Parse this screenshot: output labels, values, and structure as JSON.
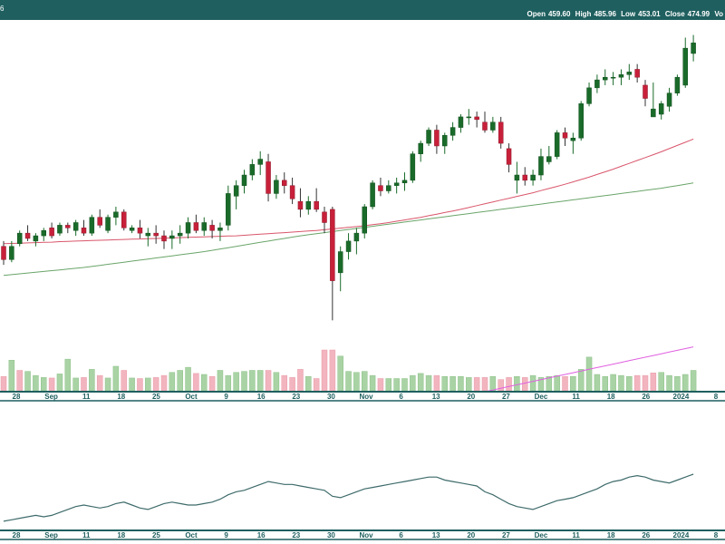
{
  "header": {
    "left_glyph": "6",
    "readout": {
      "open_label": "Open",
      "open_value": "459.60",
      "high_label": "High",
      "high_value": "485.96",
      "low_label": "Low",
      "low_value": "453.01",
      "close_label": "Close",
      "close_value": "474.99",
      "volume_label": "Vo"
    },
    "colors": {
      "bar": "#1f5f5f",
      "text": "#ffffff"
    }
  },
  "x_axis": {
    "tick_labels": [
      "28",
      "Sep",
      "11",
      "18",
      "25",
      "Oct",
      "9",
      "16",
      "23",
      "30",
      "Nov",
      "6",
      "13",
      "20",
      "27",
      "Dec",
      "11",
      "18",
      "26",
      "2024",
      "8"
    ]
  },
  "chart_data": [
    {
      "type": "candlestick",
      "title": "",
      "price_range": [
        380,
        520
      ],
      "ohlc": [
        [
          435,
          437,
          428,
          430
        ],
        [
          430,
          437,
          429,
          435
        ],
        [
          436,
          441,
          435,
          440
        ],
        [
          440,
          443,
          437,
          438
        ],
        [
          437,
          440,
          435,
          439
        ],
        [
          439,
          442,
          437,
          441
        ],
        [
          442,
          444,
          438,
          439
        ],
        [
          440,
          444,
          439,
          443
        ],
        [
          443,
          444,
          440,
          442
        ],
        [
          441,
          445,
          439,
          444
        ],
        [
          442,
          445,
          439,
          440
        ],
        [
          440,
          447,
          439,
          446
        ],
        [
          446,
          449,
          442,
          443
        ],
        [
          441,
          447,
          440,
          446
        ],
        [
          446,
          450,
          443,
          448
        ],
        [
          448,
          449,
          441,
          442
        ],
        [
          441,
          443,
          440,
          442
        ],
        [
          442,
          445,
          438,
          440
        ],
        [
          439,
          442,
          435,
          440
        ],
        [
          440,
          443,
          436,
          439
        ],
        [
          439,
          441,
          434,
          437
        ],
        [
          438,
          441,
          434,
          439
        ],
        [
          439,
          443,
          436,
          440
        ],
        [
          440,
          446,
          438,
          444
        ],
        [
          444,
          447,
          440,
          441
        ],
        [
          441,
          446,
          439,
          444
        ],
        [
          443,
          445,
          438,
          441
        ],
        [
          441,
          444,
          437,
          442
        ],
        [
          443,
          458,
          441,
          455
        ],
        [
          454,
          460,
          449,
          458
        ],
        [
          458,
          464,
          455,
          462
        ],
        [
          462,
          468,
          460,
          466
        ],
        [
          466,
          471,
          462,
          468
        ],
        [
          467,
          470,
          452,
          455
        ],
        [
          455,
          462,
          453,
          460
        ],
        [
          460,
          463,
          455,
          458
        ],
        [
          458,
          461,
          451,
          453
        ],
        [
          452,
          457,
          446,
          449
        ],
        [
          449,
          454,
          447,
          452
        ],
        [
          452,
          457,
          448,
          449
        ],
        [
          448,
          450,
          440,
          444
        ],
        [
          449,
          450,
          407,
          422
        ],
        [
          425,
          435,
          418,
          433
        ],
        [
          433,
          440,
          430,
          437
        ],
        [
          437,
          442,
          432,
          440
        ],
        [
          440,
          451,
          438,
          450
        ],
        [
          450,
          460,
          449,
          459
        ],
        [
          458,
          461,
          454,
          456
        ],
        [
          456,
          460,
          455,
          458
        ],
        [
          458,
          461,
          455,
          459
        ],
        [
          459,
          463,
          456,
          460
        ],
        [
          460,
          471,
          459,
          470
        ],
        [
          470,
          475,
          467,
          474
        ],
        [
          474,
          480,
          473,
          479
        ],
        [
          479,
          481,
          470,
          473
        ],
        [
          473,
          478,
          470,
          477
        ],
        [
          477,
          482,
          475,
          480
        ],
        [
          480,
          485,
          478,
          484
        ],
        [
          484,
          487,
          481,
          484
        ],
        [
          484,
          486,
          480,
          483
        ],
        [
          482,
          486,
          478,
          479
        ],
        [
          479,
          484,
          478,
          482
        ],
        [
          482,
          484,
          472,
          474
        ],
        [
          472,
          474,
          463,
          466
        ],
        [
          460,
          467,
          455,
          462
        ],
        [
          462,
          465,
          458,
          460
        ],
        [
          460,
          464,
          458,
          462
        ],
        [
          462,
          472,
          460,
          469
        ],
        [
          467,
          473,
          466,
          469
        ],
        [
          469,
          479,
          468,
          478
        ],
        [
          478,
          480,
          473,
          476
        ],
        [
          475,
          478,
          470,
          476
        ],
        [
          476,
          490,
          475,
          489
        ],
        [
          489,
          497,
          488,
          495
        ],
        [
          495,
          500,
          493,
          498
        ],
        [
          498,
          502,
          496,
          499
        ],
        [
          499,
          501,
          496,
          499
        ],
        [
          499,
          502,
          496,
          500
        ],
        [
          500,
          504,
          498,
          501
        ],
        [
          502,
          504,
          497,
          499
        ],
        [
          496,
          498,
          488,
          491
        ],
        [
          484,
          497,
          484,
          487
        ],
        [
          485,
          490,
          483,
          489
        ],
        [
          488,
          495,
          486,
          493
        ],
        [
          493,
          500,
          492,
          499
        ],
        [
          496,
          514,
          495,
          510
        ],
        [
          508,
          515,
          505,
          512
        ]
      ],
      "sma_50": [
        436,
        436.1,
        436.2,
        436.3,
        436.4,
        436.5,
        436.6,
        436.8,
        436.9,
        437,
        437.1,
        437.2,
        437.3,
        437.4,
        437.5,
        437.6,
        437.7,
        437.8,
        437.9,
        438,
        438.1,
        438.2,
        438.3,
        438.4,
        438.5,
        438.6,
        438.7,
        438.8,
        438.9,
        439,
        439.2,
        439.4,
        439.6,
        439.8,
        440,
        440.2,
        440.4,
        440.6,
        440.8,
        441,
        441.3,
        441.6,
        441.9,
        442.2,
        442.5,
        442.8,
        443.2,
        443.6,
        444,
        444.5,
        445,
        445.5,
        446,
        446.6,
        447.2,
        447.8,
        448.4,
        449,
        449.7,
        450.4,
        451.1,
        451.8,
        452.5,
        453.2,
        453.9,
        454.6,
        455.3,
        456.1,
        456.9,
        457.7,
        458.5,
        459.4,
        460.3,
        461.2,
        462.2,
        463.2,
        464.2,
        465.3,
        466.4,
        467.5,
        468.6,
        469.7,
        470.8,
        472,
        473.2,
        474.4,
        475.6
      ],
      "sma_200": [
        424,
        424.3,
        424.6,
        424.9,
        425.2,
        425.5,
        425.8,
        426.1,
        426.4,
        426.7,
        427,
        427.4,
        427.8,
        428.2,
        428.6,
        429,
        429.4,
        429.8,
        430.2,
        430.6,
        431,
        431.4,
        431.8,
        432.2,
        432.6,
        433,
        433.5,
        434,
        434.5,
        435,
        435.5,
        436,
        436.5,
        437,
        437.5,
        438,
        438.5,
        439,
        439.4,
        439.8,
        440.2,
        440.6,
        441,
        441.4,
        441.8,
        442.2,
        442.6,
        443,
        443.4,
        443.8,
        444.2,
        444.6,
        445,
        445.4,
        445.8,
        446.2,
        446.6,
        447,
        447.4,
        447.8,
        448.2,
        448.6,
        449,
        449.4,
        449.8,
        450.2,
        450.6,
        451,
        451.4,
        451.8,
        452.2,
        452.6,
        453,
        453.4,
        453.8,
        454.2,
        454.6,
        455,
        455.4,
        455.8,
        456.2,
        456.6,
        457,
        457.5,
        458,
        458.5,
        459
      ],
      "volume": [
        28,
        60,
        40,
        38,
        30,
        26,
        25,
        33,
        62,
        25,
        26,
        42,
        30,
        25,
        48,
        40,
        25,
        24,
        25,
        26,
        30,
        36,
        40,
        46,
        34,
        32,
        28,
        40,
        30,
        36,
        38,
        40,
        40,
        40,
        36,
        30,
        26,
        42,
        28,
        24,
        80,
        80,
        68,
        38,
        36,
        38,
        30,
        24,
        24,
        24,
        24,
        30,
        34,
        30,
        30,
        28,
        28,
        28,
        26,
        26,
        26,
        28,
        22,
        26,
        28,
        26,
        30,
        26,
        28,
        30,
        28,
        28,
        42,
        66,
        32,
        28,
        32,
        30,
        28,
        30,
        30,
        35,
        36,
        30,
        28,
        32,
        40
      ],
      "volume_colors": [
        "down",
        "up",
        "down",
        "up",
        "up",
        "up",
        "down",
        "up",
        "up",
        "up",
        "down",
        "up",
        "down",
        "up",
        "up",
        "down",
        "up",
        "down",
        "up",
        "down",
        "down",
        "up",
        "up",
        "up",
        "down",
        "up",
        "down",
        "up",
        "up",
        "up",
        "up",
        "up",
        "up",
        "down",
        "up",
        "down",
        "down",
        "down",
        "up",
        "down",
        "down",
        "down",
        "up",
        "up",
        "up",
        "up",
        "up",
        "down",
        "up",
        "up",
        "up",
        "up",
        "up",
        "up",
        "down",
        "up",
        "up",
        "up",
        "up",
        "down",
        "down",
        "up",
        "down",
        "down",
        "up",
        "down",
        "up",
        "up",
        "up",
        "up",
        "down",
        "up",
        "up",
        "up",
        "up",
        "up",
        "up",
        "up",
        "up",
        "down",
        "down",
        "down",
        "up",
        "up",
        "up",
        "up",
        "up"
      ]
    },
    {
      "type": "line",
      "title": "",
      "values": [
        20,
        21,
        22,
        23,
        24,
        23,
        24,
        26,
        28,
        30,
        31,
        30,
        29,
        30,
        32,
        33,
        31,
        29,
        28,
        30,
        32,
        33,
        32,
        31,
        31,
        32,
        33,
        35,
        38,
        40,
        41,
        43,
        45,
        47,
        46,
        45,
        45,
        44,
        43,
        42,
        41,
        37,
        36,
        38,
        40,
        42,
        43,
        44,
        45,
        46,
        47,
        48,
        49,
        50,
        50,
        48,
        47,
        46,
        45,
        44,
        40,
        38,
        35,
        32,
        30,
        29,
        28,
        30,
        32,
        34,
        35,
        36,
        38,
        40,
        42,
        45,
        47,
        48,
        50,
        51,
        50,
        48,
        47,
        46,
        48,
        50,
        52
      ],
      "range": [
        15,
        60
      ]
    }
  ]
}
